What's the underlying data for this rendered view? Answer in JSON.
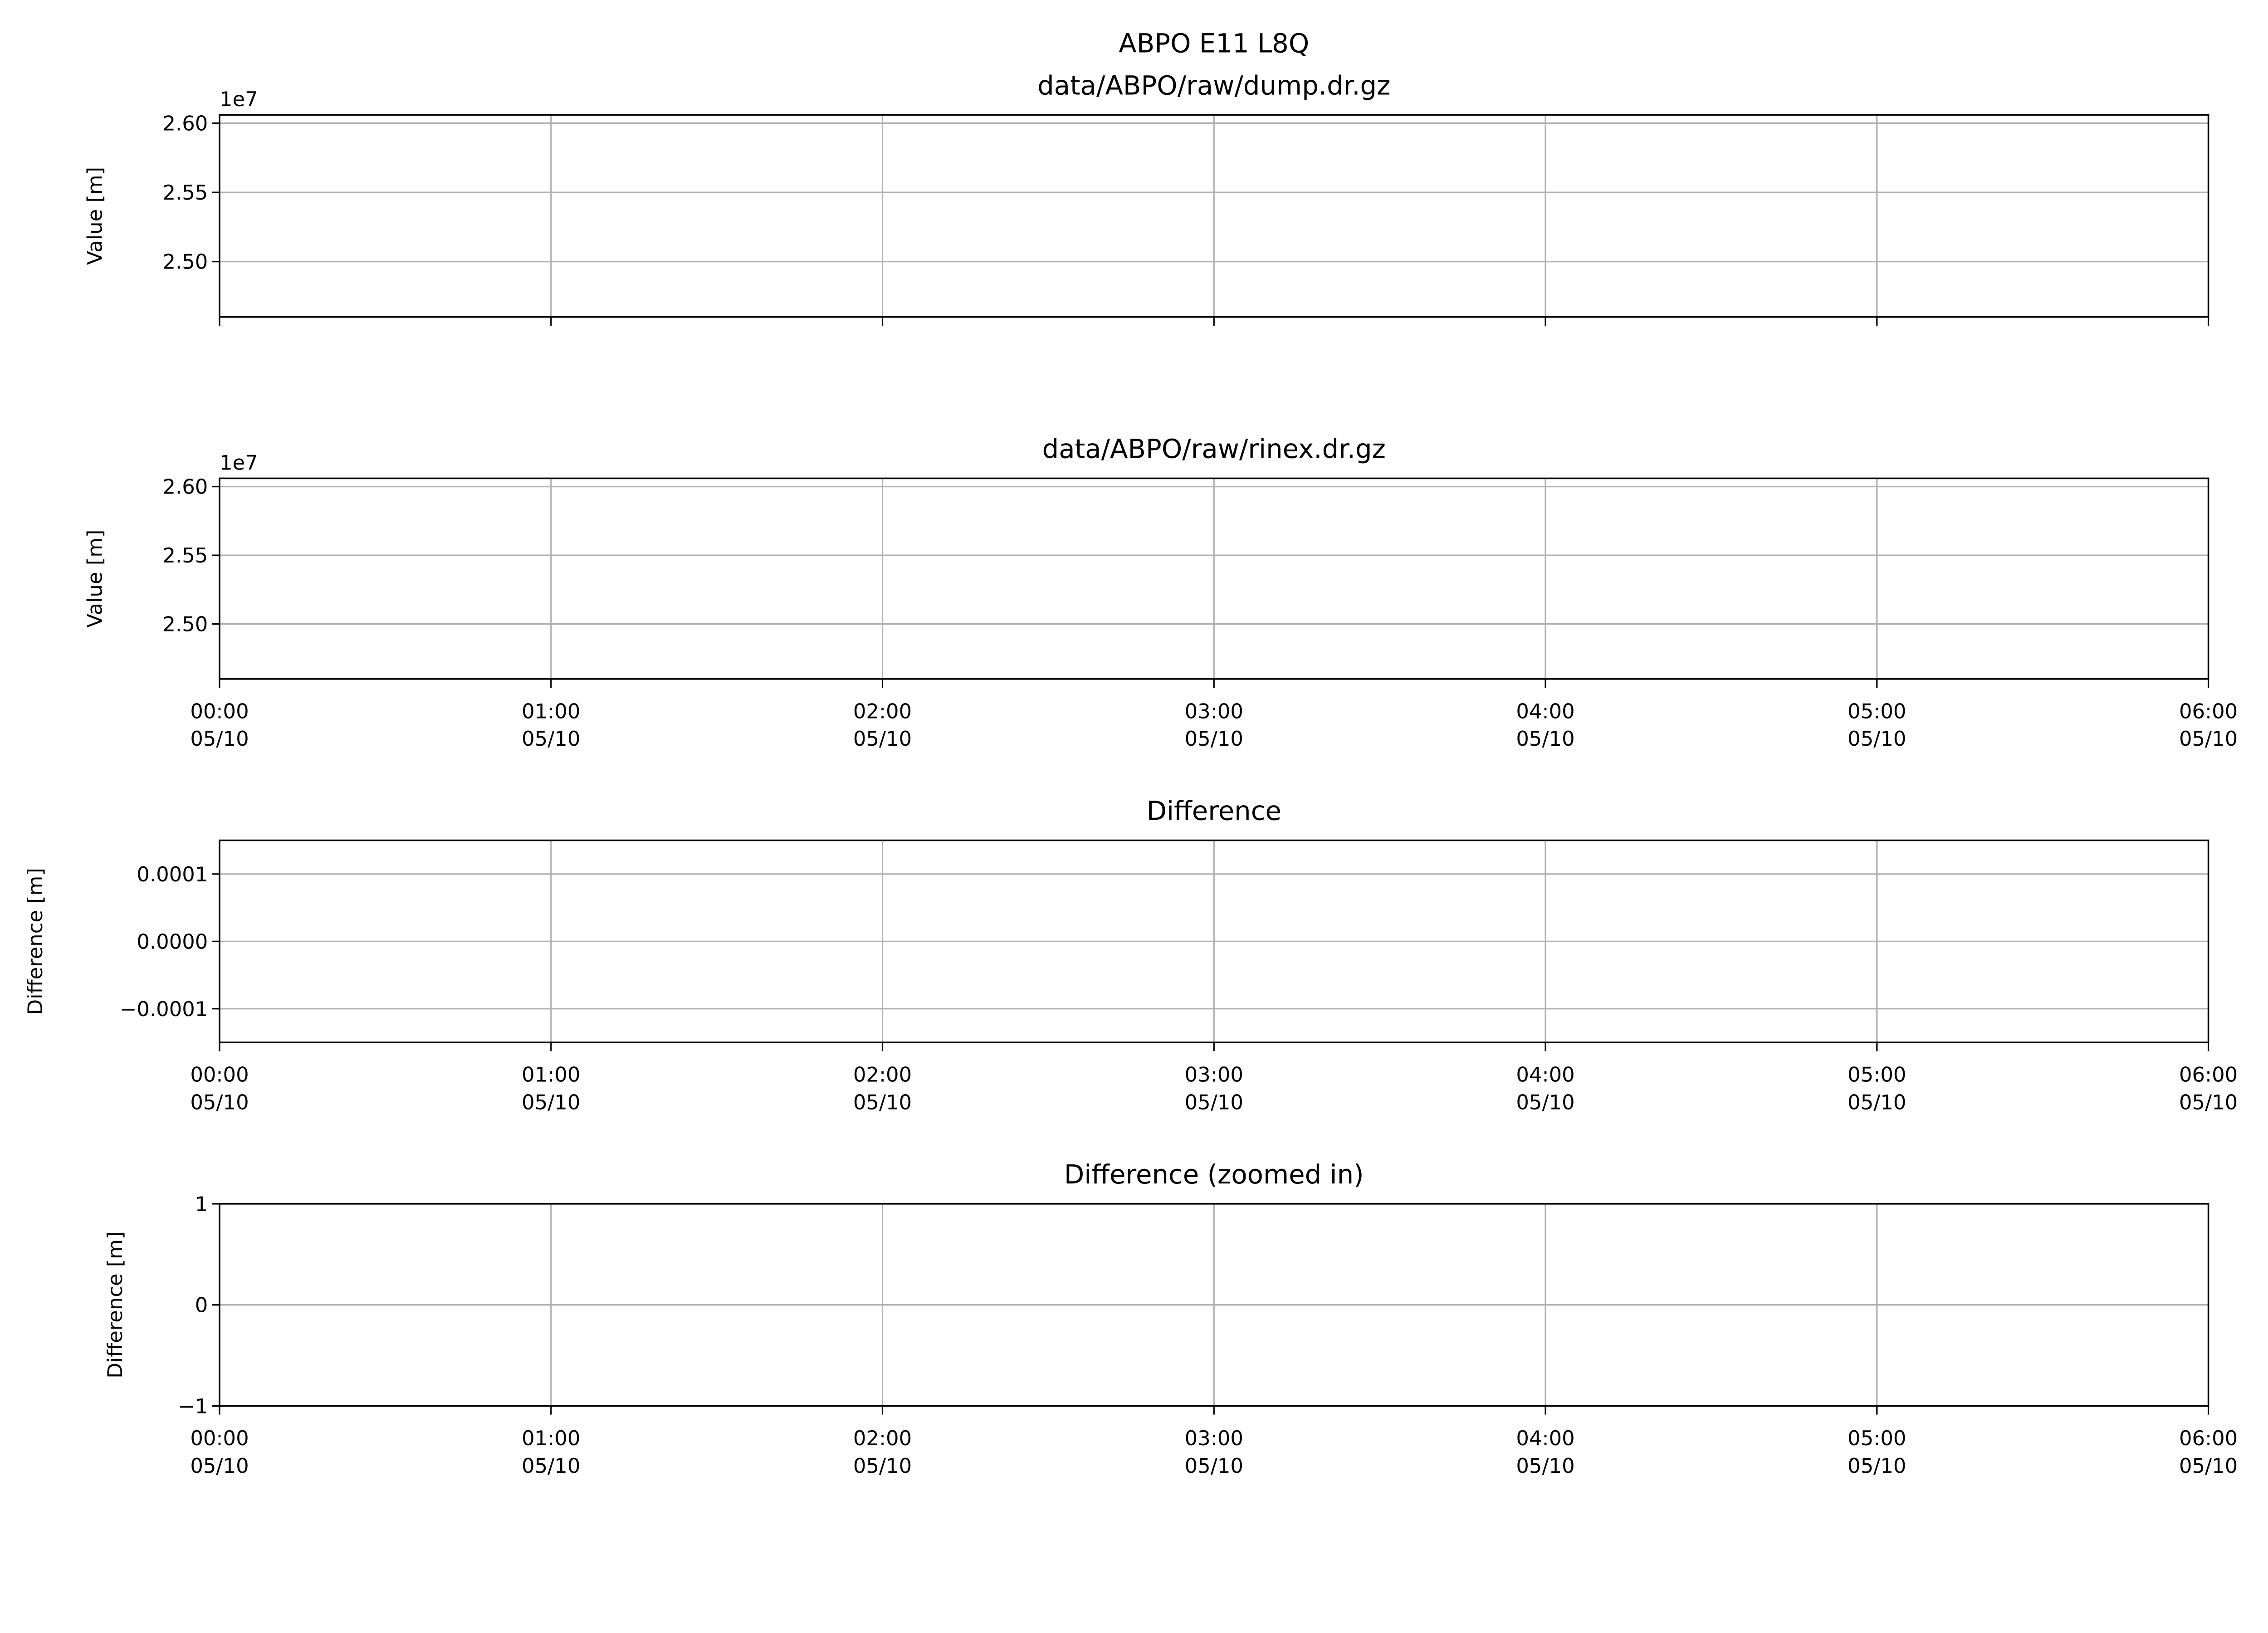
{
  "chart_data": [
    {
      "type": "line",
      "suptitle": "ABPO E11 L8Q",
      "title": "data/ABPO/raw/dump.dr.gz",
      "ylabel": "Value [m]",
      "offset_label": "1e7",
      "ylim": [
        24600000,
        26060000
      ],
      "yticks": [
        25000000,
        25500000,
        26000000
      ],
      "ytick_labels": [
        "2.50",
        "2.55",
        "2.60"
      ],
      "xlim": [
        "2023-05-10 00:00",
        "2023-05-10 06:00"
      ],
      "xticks": [
        "00:00",
        "01:00",
        "02:00",
        "03:00",
        "04:00",
        "05:00",
        "06:00"
      ],
      "xtick_labels": [],
      "grid": true,
      "series": []
    },
    {
      "type": "line",
      "title": "data/ABPO/raw/rinex.dr.gz",
      "ylabel": "Value [m]",
      "offset_label": "1e7",
      "ylim": [
        24600000,
        26060000
      ],
      "yticks": [
        25000000,
        25500000,
        26000000
      ],
      "ytick_labels": [
        "2.50",
        "2.55",
        "2.60"
      ],
      "xlim": [
        "2023-05-10 00:00",
        "2023-05-10 06:00"
      ],
      "xticks": [
        "00:00",
        "01:00",
        "02:00",
        "03:00",
        "04:00",
        "05:00",
        "06:00"
      ],
      "xtick_labels": [
        [
          "00:00",
          "05/10"
        ],
        [
          "01:00",
          "05/10"
        ],
        [
          "02:00",
          "05/10"
        ],
        [
          "03:00",
          "05/10"
        ],
        [
          "04:00",
          "05/10"
        ],
        [
          "05:00",
          "05/10"
        ],
        [
          "06:00",
          "05/10"
        ]
      ],
      "grid": true,
      "series": []
    },
    {
      "type": "line",
      "title": "Difference",
      "ylabel": "Difference [m]",
      "ylim": [
        -0.00015,
        0.00015
      ],
      "yticks": [
        -0.0001,
        0,
        0.0001
      ],
      "ytick_labels": [
        "−0.0001",
        "0.0000",
        "0.0001"
      ],
      "xlim": [
        "2023-05-10 00:00",
        "2023-05-10 06:00"
      ],
      "xticks": [
        "00:00",
        "01:00",
        "02:00",
        "03:00",
        "04:00",
        "05:00",
        "06:00"
      ],
      "xtick_labels": [
        [
          "00:00",
          "05/10"
        ],
        [
          "01:00",
          "05/10"
        ],
        [
          "02:00",
          "05/10"
        ],
        [
          "03:00",
          "05/10"
        ],
        [
          "04:00",
          "05/10"
        ],
        [
          "05:00",
          "05/10"
        ],
        [
          "06:00",
          "05/10"
        ]
      ],
      "grid": true,
      "series": []
    },
    {
      "type": "line",
      "title": "Difference (zoomed in)",
      "ylabel": "Difference [m]",
      "ylim": [
        -1,
        1
      ],
      "yticks": [
        -1,
        0,
        1
      ],
      "ytick_labels": [
        "−1",
        "0",
        "1"
      ],
      "xlim": [
        "2023-05-10 00:00",
        "2023-05-10 06:00"
      ],
      "xticks": [
        "00:00",
        "01:00",
        "02:00",
        "03:00",
        "04:00",
        "05:00",
        "06:00"
      ],
      "xtick_labels": [
        [
          "00:00",
          "05/10"
        ],
        [
          "01:00",
          "05/10"
        ],
        [
          "02:00",
          "05/10"
        ],
        [
          "03:00",
          "05/10"
        ],
        [
          "04:00",
          "05/10"
        ],
        [
          "05:00",
          "05/10"
        ],
        [
          "06:00",
          "05/10"
        ]
      ],
      "grid": true,
      "series": []
    }
  ]
}
